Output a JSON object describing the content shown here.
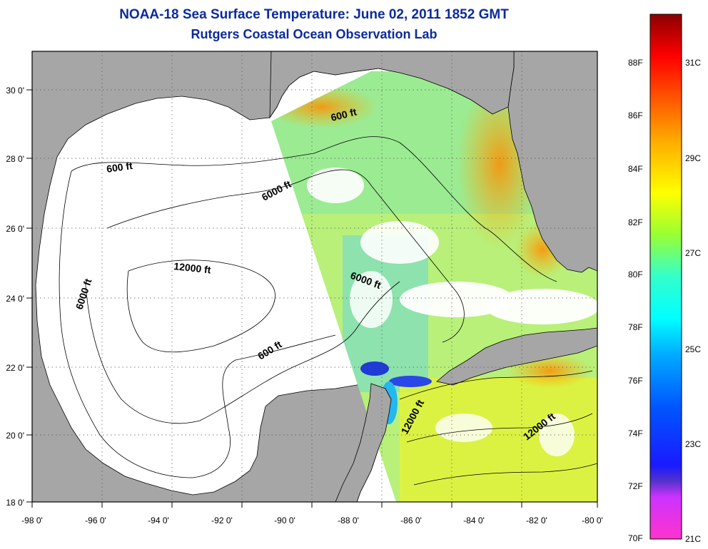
{
  "header": {
    "title": "NOAA-18 Sea Surface Temperature:  June 02, 2011 1852 GMT",
    "subtitle": "Rutgers Coastal Ocean Observation Lab"
  },
  "map": {
    "region": "Gulf of Mexico",
    "lon_range": [
      -98,
      -80
    ],
    "lat_range": [
      18,
      31
    ],
    "lon_ticks": [
      "-98 0'",
      "-96 0'",
      "-94 0'",
      "-92 0'",
      "-90 0'",
      "-88 0'",
      "-86 0'",
      "-84 0'",
      "-82 0'",
      "-80 0'"
    ],
    "lat_ticks": [
      "18 0'",
      "20 0'",
      "22 0'",
      "24 0'",
      "26 0'",
      "28 0'",
      "30 0'"
    ],
    "grid": "dotted",
    "land_color": "#a6a6a6",
    "no_data_color": "#ffffff",
    "contour_labels": [
      "600 ft",
      "600 ft",
      "6000 ft",
      "6000 ft",
      "6000 ft",
      "12000 ft",
      "600 ft",
      "12000 ft",
      "12000 ft"
    ]
  },
  "colorbar": {
    "fahrenheit_labels": [
      "88F",
      "86F",
      "84F",
      "82F",
      "80F",
      "78F",
      "76F",
      "74F",
      "72F",
      "70F"
    ],
    "celsius_labels": [
      "31C",
      "29C",
      "27C",
      "25C",
      "23C",
      "21C"
    ],
    "range_f": [
      70,
      90
    ],
    "colors": [
      "#ff33cc",
      "#6d28d9",
      "#1414ff",
      "#00aaff",
      "#00ffff",
      "#33ffcc",
      "#99ff33",
      "#ffff00",
      "#ffaa00",
      "#ff5500",
      "#ff0000",
      "#8b0000"
    ]
  }
}
